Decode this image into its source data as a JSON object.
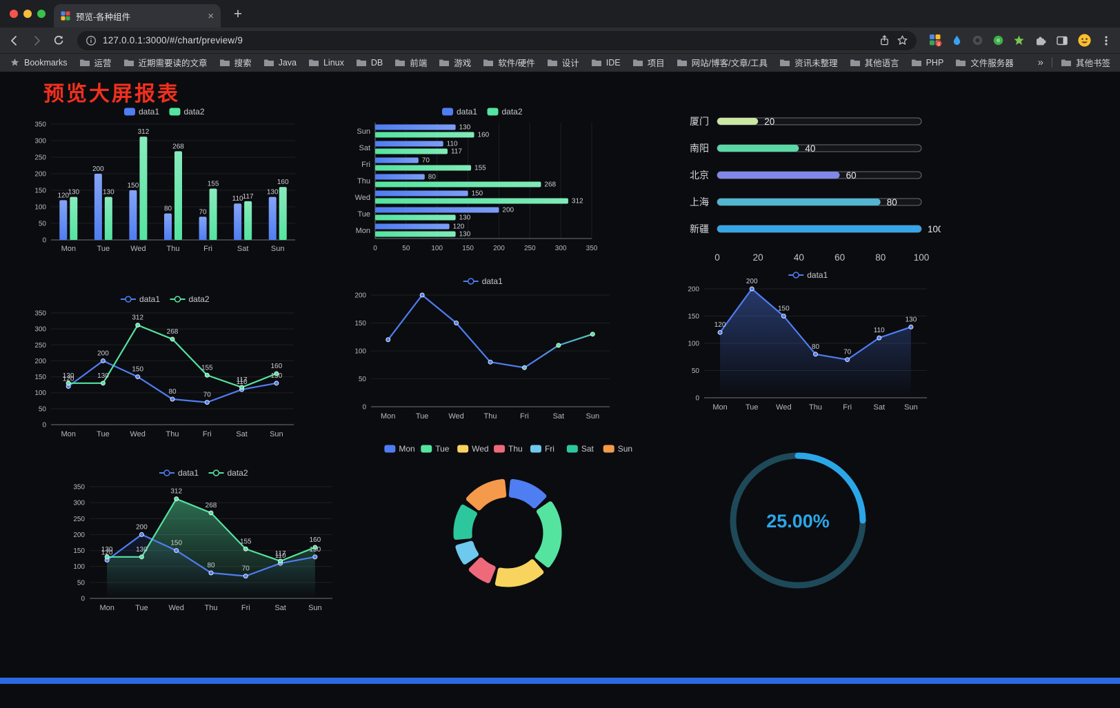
{
  "browser": {
    "tab": {
      "title": "预览-各种组件",
      "close": "×",
      "new_tab": "+"
    },
    "address": {
      "url": "127.0.0.1:3000/#/chart/preview/9"
    },
    "extension_badge": "g",
    "bookmarks_bar": {
      "root_label": "Bookmarks",
      "folders": [
        "运营",
        "近期需要读的文章",
        "搜索",
        "Java",
        "Linux",
        "DB",
        "前端",
        "游戏",
        "软件/硬件",
        "设计",
        "IDE",
        "项目",
        "网站/博客/文章/工具",
        "资讯未整理",
        "其他语言",
        "PHP",
        "文件服务器"
      ],
      "overflow": "»",
      "other": "其他书签"
    }
  },
  "page": {
    "title": "预览大屏报表",
    "title_color": "#f2301d",
    "footer_bar_color": "#2b6ae3"
  },
  "chart_style": {
    "bg": "#0b0c10",
    "grid": "rgba(255,255,255,0.08)",
    "axis": "#72757d",
    "tick": "#b6b9bf",
    "label": "#ccced4",
    "legend": "#c6c9ce"
  },
  "charts": [
    {
      "kind": "bar",
      "categories": [
        "Mon",
        "Tue",
        "Wed",
        "Thu",
        "Fri",
        "Sat",
        "Sun"
      ],
      "series": [
        {
          "name": "data1",
          "color": "#4f7df2",
          "values": [
            120,
            200,
            150,
            80,
            70,
            110,
            130
          ]
        },
        {
          "name": "data2",
          "color": "#55e3a0",
          "values": [
            130,
            130,
            312,
            268,
            155,
            117,
            160
          ]
        }
      ],
      "ylim": [
        0,
        350
      ],
      "ytick": 50,
      "labels": true
    },
    {
      "kind": "hbar",
      "categories": [
        "Mon",
        "Tue",
        "Wed",
        "Thu",
        "Fri",
        "Sat",
        "Sun"
      ],
      "series": [
        {
          "name": "data1",
          "color": "#4f7df2",
          "values": [
            120,
            200,
            150,
            80,
            70,
            110,
            130
          ]
        },
        {
          "name": "data2",
          "color": "#55e3a0",
          "values": [
            130,
            130,
            312,
            268,
            155,
            117,
            160
          ]
        }
      ],
      "xlim": [
        0,
        350
      ],
      "xtick": 50,
      "labels": true
    },
    {
      "kind": "progress",
      "max": 100,
      "xticks": [
        0,
        20,
        40,
        60,
        80,
        100
      ],
      "rows": [
        {
          "label": "厦门",
          "value": 20,
          "color": "#cbe7a2"
        },
        {
          "label": "南阳",
          "value": 40,
          "color": "#5ad8a5"
        },
        {
          "label": "北京",
          "value": 60,
          "color": "#8187e9"
        },
        {
          "label": "上海",
          "value": 80,
          "color": "#52b6d2"
        },
        {
          "label": "新疆",
          "value": 100,
          "color": "#37a6e8"
        }
      ]
    },
    {
      "kind": "line",
      "categories": [
        "Mon",
        "Tue",
        "Wed",
        "Thu",
        "Fri",
        "Sat",
        "Sun"
      ],
      "series": [
        {
          "name": "data1",
          "color": "#4f7df2",
          "values": [
            120,
            200,
            150,
            80,
            70,
            110,
            130
          ]
        },
        {
          "name": "data2",
          "color": "#55e3a0",
          "values": [
            130,
            130,
            312,
            268,
            155,
            117,
            160
          ]
        }
      ],
      "ylim": [
        0,
        350
      ],
      "ytick": 50,
      "labels": true
    },
    {
      "kind": "line",
      "categories": [
        "Mon",
        "Tue",
        "Wed",
        "Thu",
        "Fri",
        "Sat",
        "Sun"
      ],
      "series": [
        {
          "name": "data1",
          "color": "#4f7df2",
          "values": [
            120,
            200,
            150,
            80,
            70,
            110,
            130
          ],
          "stroke_gradient": [
            "#4f7df2",
            "#4f7df2",
            "#4f7df2",
            "#55e3a0"
          ],
          "point_colors": [
            "#4f7df2",
            "#4f7df2",
            "#4f7df2",
            "#4f7df2",
            "#53c2ca",
            "#55e3a0",
            "#55e3a0"
          ]
        }
      ],
      "ylim": [
        0,
        200
      ],
      "ytick": 50,
      "labels": false
    },
    {
      "kind": "line",
      "categories": [
        "Mon",
        "Tue",
        "Wed",
        "Thu",
        "Fri",
        "Sat",
        "Sun"
      ],
      "series": [
        {
          "name": "data1",
          "color": "#4f7df2",
          "values": [
            120,
            200,
            150,
            80,
            70,
            110,
            130
          ],
          "fill": 0.4
        }
      ],
      "ylim": [
        0,
        200
      ],
      "ytick": 50,
      "labels": true
    },
    {
      "kind": "line",
      "categories": [
        "Mon",
        "Tue",
        "Wed",
        "Thu",
        "Fri",
        "Sat",
        "Sun"
      ],
      "series": [
        {
          "name": "data1",
          "color": "#4f7df2",
          "values": [
            120,
            200,
            150,
            80,
            70,
            110,
            130
          ],
          "fill": 0.12
        },
        {
          "name": "data2",
          "color": "#55e3a0",
          "values": [
            130,
            130,
            312,
            268,
            155,
            117,
            160
          ],
          "fill": 0.45
        }
      ],
      "ylim": [
        0,
        350
      ],
      "ytick": 50,
      "labels": true
    },
    {
      "kind": "donut",
      "categories": [
        "Mon",
        "Tue",
        "Wed",
        "Thu",
        "Fri",
        "Sat",
        "Sun"
      ],
      "values": [
        120,
        200,
        150,
        80,
        70,
        110,
        130
      ],
      "colors": [
        "#4f7df2",
        "#55e3a0",
        "#f8d35e",
        "#ee6a7b",
        "#6fc8ee",
        "#2dc79d",
        "#f59a4a"
      ]
    },
    {
      "kind": "gauge",
      "percent": 25,
      "value_label": "25.00%",
      "color": "#2ba7e8",
      "track_color": "#1e4959"
    }
  ]
}
